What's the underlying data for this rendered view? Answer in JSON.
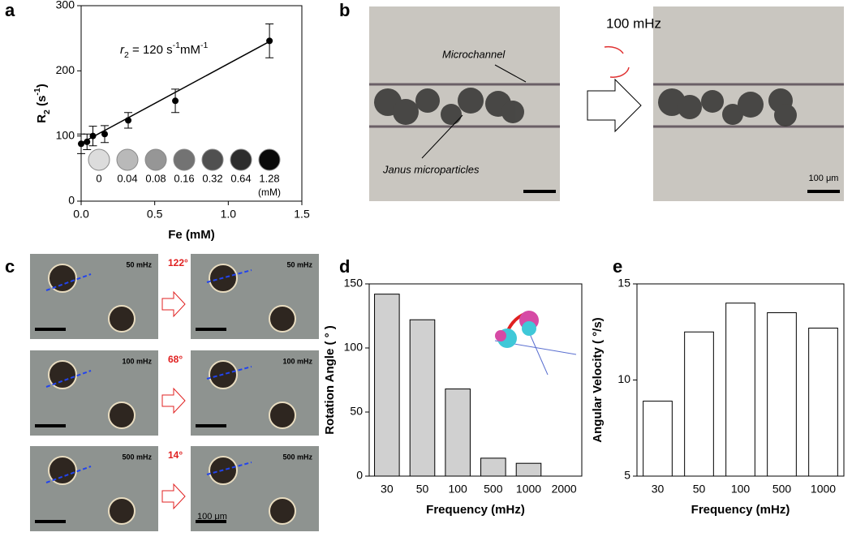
{
  "panel_labels": [
    "a",
    "b",
    "c",
    "d",
    "e"
  ],
  "panel_b": {
    "frequency": "100 mHz",
    "channel_label": "Microchannel",
    "particle_label": "Janus microparticles",
    "scale_bar": "100 μm"
  },
  "panel_c": {
    "rows": [
      {
        "frequency": "50 mHz",
        "angle": "122°"
      },
      {
        "frequency": "100 mHz",
        "angle": "68°"
      },
      {
        "frequency": "500 mHz",
        "angle": "14°"
      }
    ],
    "scale_bar": "100 μm"
  },
  "chart_data": [
    {
      "type": "scatter",
      "xlabel": "Fe (mM)",
      "ylabel_parts": [
        "R",
        "2",
        " (s",
        "-1",
        ")"
      ],
      "annotation_parts": [
        "r",
        "2",
        " = 120 s",
        "-1",
        "mM",
        "-1"
      ],
      "x": [
        0,
        0.04,
        0.08,
        0.16,
        0.32,
        0.64,
        1.28
      ],
      "values": [
        88,
        91,
        100,
        103,
        124,
        154,
        246
      ],
      "errors": [
        15,
        12,
        15,
        13,
        12,
        18,
        26
      ],
      "color": "#000000",
      "fit_line": {
        "x": [
          0,
          1.28
        ],
        "y": [
          89,
          245
        ]
      },
      "inset_labels": [
        "0",
        "0.04",
        "0.08",
        "0.16",
        "0.32",
        "0.64",
        "1.28"
      ],
      "inset_unit": "(mM)",
      "xlim": [
        0,
        1.5
      ],
      "xticks": [
        {
          "value": 0,
          "label": "0.0"
        },
        {
          "value": 0.5,
          "label": "0.5"
        },
        {
          "value": 1,
          "label": "1.0"
        },
        {
          "value": 1.5,
          "label": "1.5"
        }
      ],
      "ylim": [
        0,
        300
      ],
      "yticks": [
        0,
        100,
        200,
        300
      ]
    },
    {
      "type": "bar",
      "xlabel": "Frequency (mHz)",
      "ylabel": "Rotation Angle ( ° )",
      "categories": [
        "30",
        "50",
        "100",
        "500",
        "1000",
        "2000"
      ],
      "values": [
        142,
        122,
        68,
        14,
        10,
        null
      ],
      "color": "#d0d0d0",
      "ylim": [
        0,
        150
      ],
      "yticks": [
        0,
        50,
        100,
        150
      ]
    },
    {
      "type": "bar",
      "xlabel": "Frequency (mHz)",
      "ylabel": "Angular Velocity ( °/s)",
      "categories": [
        "30",
        "50",
        "100",
        "500",
        "1000"
      ],
      "values": [
        8.9,
        12.5,
        14,
        13.5,
        12.7
      ],
      "color": "#ffffff",
      "ylim": [
        5,
        15
      ],
      "yticks": [
        5,
        10,
        15
      ]
    }
  ]
}
